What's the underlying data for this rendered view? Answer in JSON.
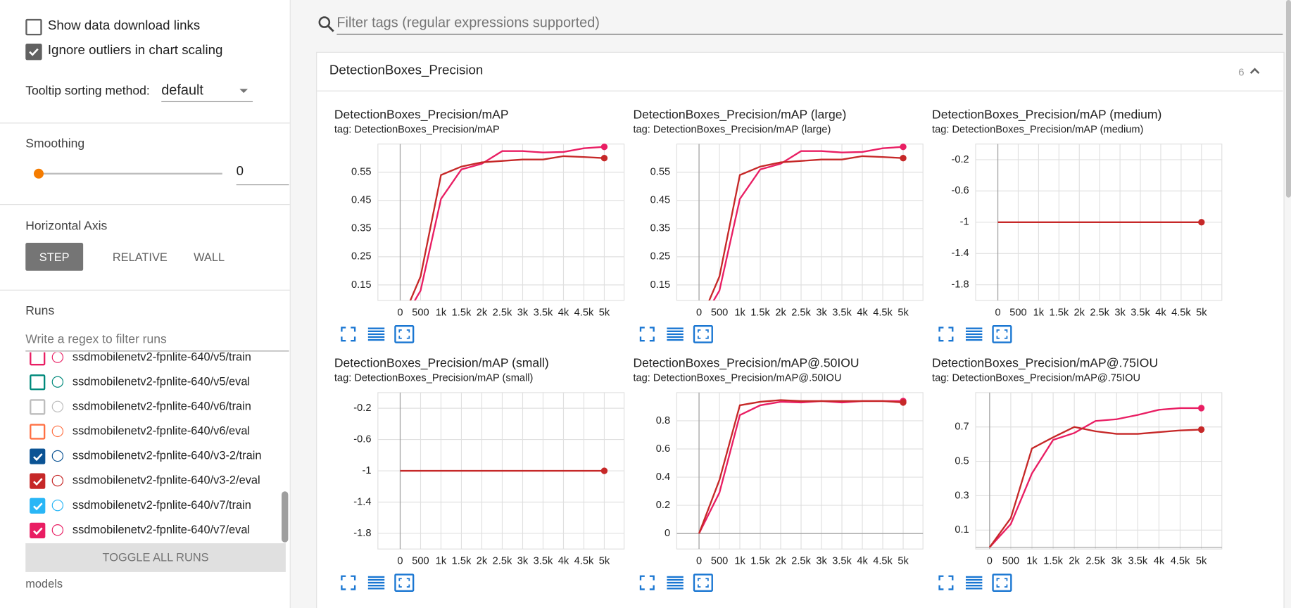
{
  "settings": {
    "show_download": {
      "label": "Show data download links",
      "checked": false
    },
    "ignore_outliers": {
      "label": "Ignore outliers in chart scaling",
      "checked": true
    },
    "tooltip_label": "Tooltip sorting method:",
    "tooltip_value": "default"
  },
  "smoothing": {
    "label": "Smoothing",
    "value": 0
  },
  "horizontal_axis": {
    "label": "Horizontal Axis",
    "options": [
      "STEP",
      "RELATIVE",
      "WALL"
    ],
    "selected": 0
  },
  "runs": {
    "label": "Runs",
    "filter_placeholder": "Write a regex to filter runs",
    "items": [
      {
        "name": "ssdmobilenetv2-fpnlite-640/v5/train",
        "color": "#e91e63",
        "checked": false
      },
      {
        "name": "ssdmobilenetv2-fpnlite-640/v5/eval",
        "color": "#00897b",
        "checked": false
      },
      {
        "name": "ssdmobilenetv2-fpnlite-640/v6/train",
        "color": "#bdbdbd",
        "checked": false
      },
      {
        "name": "ssdmobilenetv2-fpnlite-640/v6/eval",
        "color": "#ff7043",
        "checked": false
      },
      {
        "name": "ssdmobilenetv2-fpnlite-640/v3-2/train",
        "color": "#0b5394",
        "checked": true
      },
      {
        "name": "ssdmobilenetv2-fpnlite-640/v3-2/eval",
        "color": "#c62828",
        "checked": true
      },
      {
        "name": "ssdmobilenetv2-fpnlite-640/v7/train",
        "color": "#29b6f6",
        "checked": true
      },
      {
        "name": "ssdmobilenetv2-fpnlite-640/v7/eval",
        "color": "#e91e63",
        "checked": true
      }
    ],
    "toggle": "TOGGLE ALL RUNS",
    "footer": "models"
  },
  "tag_filter_placeholder": "Filter tags (regular expressions supported)",
  "section": {
    "title": "DetectionBoxes_Precision",
    "count": 6
  },
  "chart_data": [
    {
      "type": "line",
      "title": "DetectionBoxes_Precision/mAP",
      "subtitle": "tag: DetectionBoxes_Precision/mAP",
      "x": [
        0,
        500,
        1000,
        1500,
        2000,
        2500,
        3000,
        3500,
        4000,
        4500,
        5000
      ],
      "series": [
        {
          "color": "#e91e63",
          "values": [
            0.005,
            0.13,
            0.455,
            0.56,
            0.58,
            0.625,
            0.625,
            0.62,
            0.622,
            0.635,
            0.64
          ]
        },
        {
          "color": "#c62828",
          "values": [
            0.01,
            0.18,
            0.54,
            0.57,
            0.585,
            0.59,
            0.595,
            0.595,
            0.607,
            0.604,
            0.6
          ]
        }
      ],
      "xlim": [
        -545,
        5485
      ],
      "ylim": [
        0.095,
        0.65
      ],
      "xticks": [
        0,
        500,
        {
          "value": 1000,
          "label": "1k"
        },
        {
          "value": 1500,
          "label": "1.5k"
        },
        {
          "value": 2000,
          "label": "2k"
        },
        {
          "value": 2500,
          "label": "2.5k"
        },
        {
          "value": 3000,
          "label": "3k"
        },
        {
          "value": 3500,
          "label": "3.5k"
        },
        {
          "value": 4000,
          "label": "4k"
        },
        {
          "value": 4500,
          "label": "4.5k"
        },
        {
          "value": 5000,
          "label": "5k"
        }
      ],
      "yticks": [
        0.15,
        0.25,
        0.35,
        0.45,
        0.55
      ],
      "grid": true
    },
    {
      "type": "line",
      "title": "DetectionBoxes_Precision/mAP (large)",
      "subtitle": "tag: DetectionBoxes_Precision/mAP (large)",
      "x": [
        0,
        500,
        1000,
        1500,
        2000,
        2500,
        3000,
        3500,
        4000,
        4500,
        5000
      ],
      "series": [
        {
          "color": "#e91e63",
          "values": [
            0.005,
            0.13,
            0.455,
            0.56,
            0.58,
            0.625,
            0.625,
            0.62,
            0.622,
            0.635,
            0.64
          ]
        },
        {
          "color": "#c62828",
          "values": [
            0.01,
            0.18,
            0.54,
            0.57,
            0.585,
            0.59,
            0.595,
            0.595,
            0.607,
            0.604,
            0.6
          ]
        }
      ],
      "xlim": [
        -545,
        5485
      ],
      "ylim": [
        0.095,
        0.65
      ],
      "xticks": [
        0,
        500,
        {
          "value": 1000,
          "label": "1k"
        },
        {
          "value": 1500,
          "label": "1.5k"
        },
        {
          "value": 2000,
          "label": "2k"
        },
        {
          "value": 2500,
          "label": "2.5k"
        },
        {
          "value": 3000,
          "label": "3k"
        },
        {
          "value": 3500,
          "label": "3.5k"
        },
        {
          "value": 4000,
          "label": "4k"
        },
        {
          "value": 4500,
          "label": "4.5k"
        },
        {
          "value": 5000,
          "label": "5k"
        }
      ],
      "yticks": [
        0.15,
        0.25,
        0.35,
        0.45,
        0.55
      ],
      "grid": true
    },
    {
      "type": "line",
      "title": "DetectionBoxes_Precision/mAP (medium)",
      "subtitle": "tag: DetectionBoxes_Precision/mAP (medium)",
      "x": [
        0,
        500,
        1000,
        1500,
        2000,
        2500,
        3000,
        3500,
        4000,
        4500,
        5000
      ],
      "series": [
        {
          "color": "#c62828",
          "values": [
            -1,
            -1,
            -1,
            -1,
            -1,
            -1,
            -1,
            -1,
            -1,
            -1,
            -1
          ]
        }
      ],
      "xlim": [
        -545,
        5500
      ],
      "ylim": [
        -2.0,
        0.0
      ],
      "xticks": [
        0,
        500,
        {
          "value": 1000,
          "label": "1k"
        },
        {
          "value": 1500,
          "label": "1.5k"
        },
        {
          "value": 2000,
          "label": "2k"
        },
        {
          "value": 2500,
          "label": "2.5k"
        },
        {
          "value": 3000,
          "label": "3k"
        },
        {
          "value": 3500,
          "label": "3.5k"
        },
        {
          "value": 4000,
          "label": "4k"
        },
        {
          "value": 4500,
          "label": "4.5k"
        },
        {
          "value": 5000,
          "label": "5k"
        }
      ],
      "yticks": [
        -1.8,
        -1.4,
        -1,
        -0.6,
        -0.2
      ],
      "grid": true
    },
    {
      "type": "line",
      "title": "DetectionBoxes_Precision/mAP (small)",
      "subtitle": "tag: DetectionBoxes_Precision/mAP (small)",
      "x": [
        0,
        500,
        1000,
        1500,
        2000,
        2500,
        3000,
        3500,
        4000,
        4500,
        5000
      ],
      "series": [
        {
          "color": "#c62828",
          "values": [
            -1,
            -1,
            -1,
            -1,
            -1,
            -1,
            -1,
            -1,
            -1,
            -1,
            -1
          ]
        }
      ],
      "xlim": [
        -545,
        5485
      ],
      "ylim": [
        -2.0,
        0.0
      ],
      "xticks": [
        0,
        500,
        {
          "value": 1000,
          "label": "1k"
        },
        {
          "value": 1500,
          "label": "1.5k"
        },
        {
          "value": 2000,
          "label": "2k"
        },
        {
          "value": 2500,
          "label": "2.5k"
        },
        {
          "value": 3000,
          "label": "3k"
        },
        {
          "value": 3500,
          "label": "3.5k"
        },
        {
          "value": 4000,
          "label": "4k"
        },
        {
          "value": 4500,
          "label": "4.5k"
        },
        {
          "value": 5000,
          "label": "5k"
        }
      ],
      "yticks": [
        -1.8,
        -1.4,
        -1,
        -0.6,
        -0.2
      ],
      "grid": true
    },
    {
      "type": "line",
      "title": "DetectionBoxes_Precision/mAP@.50IOU",
      "subtitle": "tag: DetectionBoxes_Precision/mAP@.50IOU",
      "x": [
        0,
        500,
        1000,
        1500,
        2000,
        2500,
        3000,
        3500,
        4000,
        4500,
        5000
      ],
      "series": [
        {
          "color": "#e91e63",
          "values": [
            0,
            0.29,
            0.84,
            0.91,
            0.935,
            0.93,
            0.94,
            0.93,
            0.94,
            0.94,
            0.94
          ]
        },
        {
          "color": "#c62828",
          "values": [
            0,
            0.38,
            0.91,
            0.935,
            0.947,
            0.94,
            0.94,
            0.94,
            0.94,
            0.94,
            0.93
          ]
        }
      ],
      "xlim": [
        -545,
        5485
      ],
      "ylim": [
        -0.11,
        1.0
      ],
      "xticks": [
        0,
        500,
        {
          "value": 1000,
          "label": "1k"
        },
        {
          "value": 1500,
          "label": "1.5k"
        },
        {
          "value": 2000,
          "label": "2k"
        },
        {
          "value": 2500,
          "label": "2.5k"
        },
        {
          "value": 3000,
          "label": "3k"
        },
        {
          "value": 3500,
          "label": "3.5k"
        },
        {
          "value": 4000,
          "label": "4k"
        },
        {
          "value": 4500,
          "label": "4.5k"
        },
        {
          "value": 5000,
          "label": "5k"
        }
      ],
      "yticks": [
        0,
        0.2,
        0.4,
        0.6,
        0.8
      ],
      "grid": true
    },
    {
      "type": "line",
      "title": "DetectionBoxes_Precision/mAP@.75IOU",
      "subtitle": "tag: DetectionBoxes_Precision/mAP@.75IOU",
      "x": [
        0,
        500,
        1000,
        1500,
        2000,
        2500,
        3000,
        3500,
        4000,
        4500,
        5000
      ],
      "series": [
        {
          "color": "#e91e63",
          "values": [
            0,
            0.135,
            0.43,
            0.625,
            0.665,
            0.735,
            0.745,
            0.77,
            0.8,
            0.81,
            0.81
          ]
        },
        {
          "color": "#c62828",
          "values": [
            0,
            0.17,
            0.575,
            0.64,
            0.7,
            0.675,
            0.66,
            0.66,
            0.67,
            0.68,
            0.685
          ]
        }
      ],
      "xlim": [
        -330,
        5485
      ],
      "ylim": [
        -0.01,
        0.9
      ],
      "xticks": [
        0,
        500,
        {
          "value": 1000,
          "label": "1k"
        },
        {
          "value": 1500,
          "label": "1.5k"
        },
        {
          "value": 2000,
          "label": "2k"
        },
        {
          "value": 2500,
          "label": "2.5k"
        },
        {
          "value": 3000,
          "label": "3k"
        },
        {
          "value": 3500,
          "label": "3.5k"
        },
        {
          "value": 4000,
          "label": "4k"
        },
        {
          "value": 4500,
          "label": "4.5k"
        },
        {
          "value": 5000,
          "label": "5k"
        }
      ],
      "yticks": [
        0.1,
        0.3,
        0.5,
        0.7
      ],
      "grid": true
    }
  ]
}
